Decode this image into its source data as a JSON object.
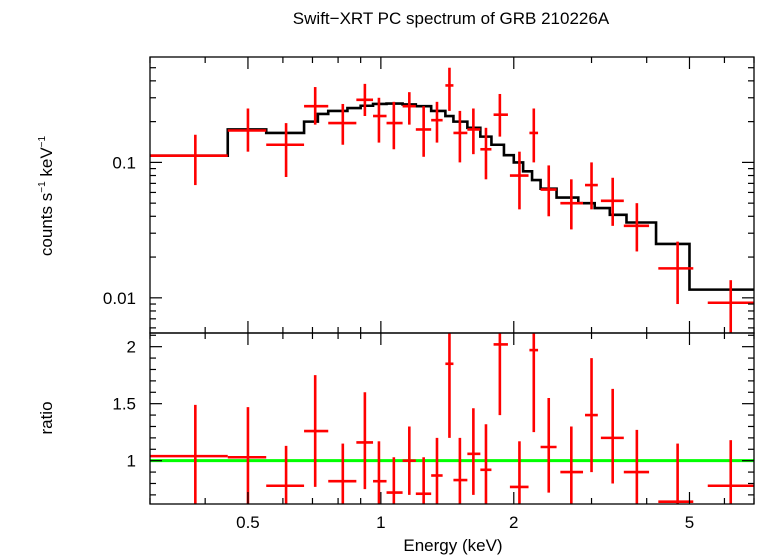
{
  "chart_data": [
    {
      "panel": "spectrum",
      "type": "line",
      "title": "Swift−XRT PC spectrum of GRB 210226A",
      "ylabel_main": "counts s",
      "ylabel_sup1": "−1",
      "ylabel_mid": " keV",
      "ylabel_sup2": "−1",
      "xscale": "log",
      "yscale": "log",
      "xlim": [
        0.3,
        7.0
      ],
      "ylim": [
        0.0055,
        0.6
      ],
      "yticks": [
        0.01,
        0.1
      ],
      "ytick_labels": [
        "0.01",
        "0.1"
      ],
      "data_color": "#ff0000",
      "model_color": "#000000",
      "data": [
        {
          "x": 0.38,
          "xlo": 0.3,
          "xhi": 0.45,
          "y": 0.112,
          "ylo": 0.068,
          "yhi": 0.16
        },
        {
          "x": 0.5,
          "xlo": 0.45,
          "xhi": 0.55,
          "y": 0.172,
          "ylo": 0.12,
          "yhi": 0.25
        },
        {
          "x": 0.61,
          "xlo": 0.55,
          "xhi": 0.67,
          "y": 0.135,
          "ylo": 0.078,
          "yhi": 0.195
        },
        {
          "x": 0.71,
          "xlo": 0.67,
          "xhi": 0.76,
          "y": 0.26,
          "ylo": 0.19,
          "yhi": 0.36
        },
        {
          "x": 0.82,
          "xlo": 0.76,
          "xhi": 0.88,
          "y": 0.195,
          "ylo": 0.135,
          "yhi": 0.27
        },
        {
          "x": 0.92,
          "xlo": 0.88,
          "xhi": 0.96,
          "y": 0.29,
          "ylo": 0.22,
          "yhi": 0.38
        },
        {
          "x": 0.99,
          "xlo": 0.96,
          "xhi": 1.03,
          "y": 0.22,
          "ylo": 0.14,
          "yhi": 0.3
        },
        {
          "x": 1.07,
          "xlo": 1.03,
          "xhi": 1.12,
          "y": 0.195,
          "ylo": 0.125,
          "yhi": 0.28
        },
        {
          "x": 1.16,
          "xlo": 1.12,
          "xhi": 1.2,
          "y": 0.26,
          "ylo": 0.19,
          "yhi": 0.33
        },
        {
          "x": 1.25,
          "xlo": 1.2,
          "xhi": 1.3,
          "y": 0.175,
          "ylo": 0.11,
          "yhi": 0.26
        },
        {
          "x": 1.34,
          "xlo": 1.3,
          "xhi": 1.38,
          "y": 0.205,
          "ylo": 0.14,
          "yhi": 0.28
        },
        {
          "x": 1.43,
          "xlo": 1.4,
          "xhi": 1.46,
          "y": 0.37,
          "ylo": 0.24,
          "yhi": 0.5
        },
        {
          "x": 1.51,
          "xlo": 1.46,
          "xhi": 1.57,
          "y": 0.165,
          "ylo": 0.1,
          "yhi": 0.24
        },
        {
          "x": 1.62,
          "xlo": 1.57,
          "xhi": 1.68,
          "y": 0.175,
          "ylo": 0.115,
          "yhi": 0.25
        },
        {
          "x": 1.73,
          "xlo": 1.68,
          "xhi": 1.78,
          "y": 0.125,
          "ylo": 0.075,
          "yhi": 0.18
        },
        {
          "x": 1.86,
          "xlo": 1.8,
          "xhi": 1.94,
          "y": 0.225,
          "ylo": 0.155,
          "yhi": 0.32
        },
        {
          "x": 2.06,
          "xlo": 1.96,
          "xhi": 2.16,
          "y": 0.08,
          "ylo": 0.045,
          "yhi": 0.12
        },
        {
          "x": 2.22,
          "xlo": 2.17,
          "xhi": 2.27,
          "y": 0.165,
          "ylo": 0.1,
          "yhi": 0.25
        },
        {
          "x": 2.4,
          "xlo": 2.3,
          "xhi": 2.5,
          "y": 0.063,
          "ylo": 0.04,
          "yhi": 0.095
        },
        {
          "x": 2.7,
          "xlo": 2.55,
          "xhi": 2.87,
          "y": 0.05,
          "ylo": 0.032,
          "yhi": 0.075
        },
        {
          "x": 3.0,
          "xlo": 2.9,
          "xhi": 3.1,
          "y": 0.068,
          "ylo": 0.045,
          "yhi": 0.1
        },
        {
          "x": 3.35,
          "xlo": 3.15,
          "xhi": 3.55,
          "y": 0.052,
          "ylo": 0.034,
          "yhi": 0.077
        },
        {
          "x": 3.8,
          "xlo": 3.55,
          "xhi": 4.05,
          "y": 0.034,
          "ylo": 0.022,
          "yhi": 0.05
        },
        {
          "x": 4.7,
          "xlo": 4.25,
          "xhi": 5.1,
          "y": 0.0165,
          "ylo": 0.009,
          "yhi": 0.026
        },
        {
          "x": 6.2,
          "xlo": 5.5,
          "xhi": 7.0,
          "y": 0.0092,
          "ylo": 0.0055,
          "yhi": 0.0135
        }
      ],
      "model_step": [
        [
          0.3,
          0.112
        ],
        [
          0.45,
          0.175
        ],
        [
          0.55,
          0.165
        ],
        [
          0.67,
          0.2
        ],
        [
          0.72,
          0.228
        ],
        [
          0.76,
          0.24
        ],
        [
          0.84,
          0.252
        ],
        [
          0.9,
          0.262
        ],
        [
          0.96,
          0.27
        ],
        [
          1.03,
          0.272
        ],
        [
          1.12,
          0.268
        ],
        [
          1.2,
          0.26
        ],
        [
          1.3,
          0.24
        ],
        [
          1.4,
          0.22
        ],
        [
          1.46,
          0.2
        ],
        [
          1.57,
          0.18
        ],
        [
          1.68,
          0.155
        ],
        [
          1.78,
          0.135
        ],
        [
          1.9,
          0.113
        ],
        [
          2.0,
          0.1
        ],
        [
          2.1,
          0.086
        ],
        [
          2.2,
          0.074
        ],
        [
          2.3,
          0.064
        ],
        [
          2.5,
          0.055
        ],
        [
          2.8,
          0.05
        ],
        [
          3.05,
          0.046
        ],
        [
          3.3,
          0.041
        ],
        [
          3.6,
          0.036
        ],
        [
          4.2,
          0.025
        ],
        [
          5.0,
          0.0115
        ],
        [
          7.0,
          0.0115
        ]
      ]
    },
    {
      "panel": "ratio",
      "type": "scatter",
      "ylabel": "ratio",
      "xlabel": "Energy (keV)",
      "xscale": "log",
      "xlim": [
        0.3,
        7.0
      ],
      "ylim": [
        0.62,
        2.12
      ],
      "yticks": [
        1,
        1.5,
        2
      ],
      "ytick_labels": [
        "1",
        "1.5",
        "2"
      ],
      "xticks": [
        0.5,
        1,
        2,
        5
      ],
      "xtick_labels": [
        "0.5",
        "1",
        "2",
        "5"
      ],
      "reference_line": 1.0,
      "reference_color": "#00ff00",
      "data_color": "#ff0000",
      "data": [
        {
          "x": 0.38,
          "xlo": 0.3,
          "xhi": 0.45,
          "y": 1.04,
          "ylo": 0.62,
          "yhi": 1.49
        },
        {
          "x": 0.5,
          "xlo": 0.45,
          "xhi": 0.55,
          "y": 1.03,
          "ylo": 0.62,
          "yhi": 1.47
        },
        {
          "x": 0.61,
          "xlo": 0.55,
          "xhi": 0.67,
          "y": 0.78,
          "ylo": 0.62,
          "yhi": 1.13
        },
        {
          "x": 0.71,
          "xlo": 0.67,
          "xhi": 0.76,
          "y": 1.26,
          "ylo": 0.77,
          "yhi": 1.75
        },
        {
          "x": 0.82,
          "xlo": 0.76,
          "xhi": 0.88,
          "y": 0.82,
          "ylo": 0.62,
          "yhi": 1.15
        },
        {
          "x": 0.92,
          "xlo": 0.88,
          "xhi": 0.96,
          "y": 1.16,
          "ylo": 0.75,
          "yhi": 1.6
        },
        {
          "x": 0.99,
          "xlo": 0.96,
          "xhi": 1.03,
          "y": 0.82,
          "ylo": 0.62,
          "yhi": 1.17
        },
        {
          "x": 1.07,
          "xlo": 1.03,
          "xhi": 1.12,
          "y": 0.72,
          "ylo": 0.62,
          "yhi": 1.03
        },
        {
          "x": 1.16,
          "xlo": 1.12,
          "xhi": 1.2,
          "y": 1.0,
          "ylo": 0.7,
          "yhi": 1.3
        },
        {
          "x": 1.25,
          "xlo": 1.2,
          "xhi": 1.3,
          "y": 0.71,
          "ylo": 0.62,
          "yhi": 1.03
        },
        {
          "x": 1.34,
          "xlo": 1.3,
          "xhi": 1.38,
          "y": 0.87,
          "ylo": 0.62,
          "yhi": 1.2
        },
        {
          "x": 1.43,
          "xlo": 1.4,
          "xhi": 1.46,
          "y": 1.85,
          "ylo": 1.2,
          "yhi": 2.12
        },
        {
          "x": 1.51,
          "xlo": 1.46,
          "xhi": 1.57,
          "y": 0.83,
          "ylo": 0.62,
          "yhi": 1.2
        },
        {
          "x": 1.62,
          "xlo": 1.57,
          "xhi": 1.68,
          "y": 1.06,
          "ylo": 0.7,
          "yhi": 1.46
        },
        {
          "x": 1.73,
          "xlo": 1.68,
          "xhi": 1.78,
          "y": 0.92,
          "ylo": 0.62,
          "yhi": 1.32
        },
        {
          "x": 1.86,
          "xlo": 1.8,
          "xhi": 1.94,
          "y": 2.02,
          "ylo": 1.4,
          "yhi": 2.12
        },
        {
          "x": 2.06,
          "xlo": 1.96,
          "xhi": 2.16,
          "y": 0.77,
          "ylo": 0.62,
          "yhi": 1.17
        },
        {
          "x": 2.22,
          "xlo": 2.17,
          "xhi": 2.27,
          "y": 1.97,
          "ylo": 1.25,
          "yhi": 2.12
        },
        {
          "x": 2.4,
          "xlo": 2.3,
          "xhi": 2.5,
          "y": 1.12,
          "ylo": 0.72,
          "yhi": 1.55
        },
        {
          "x": 2.7,
          "xlo": 2.55,
          "xhi": 2.87,
          "y": 0.9,
          "ylo": 0.62,
          "yhi": 1.3
        },
        {
          "x": 3.0,
          "xlo": 2.9,
          "xhi": 3.1,
          "y": 1.4,
          "ylo": 0.9,
          "yhi": 1.9
        },
        {
          "x": 3.35,
          "xlo": 3.15,
          "xhi": 3.55,
          "y": 1.2,
          "ylo": 0.8,
          "yhi": 1.63
        },
        {
          "x": 3.8,
          "xlo": 3.55,
          "xhi": 4.05,
          "y": 0.9,
          "ylo": 0.62,
          "yhi": 1.27
        },
        {
          "x": 4.7,
          "xlo": 4.25,
          "xhi": 5.1,
          "y": 0.64,
          "ylo": 0.62,
          "yhi": 1.15
        },
        {
          "x": 6.2,
          "xlo": 5.5,
          "xhi": 7.0,
          "y": 0.78,
          "ylo": 0.62,
          "yhi": 1.18
        }
      ]
    }
  ]
}
